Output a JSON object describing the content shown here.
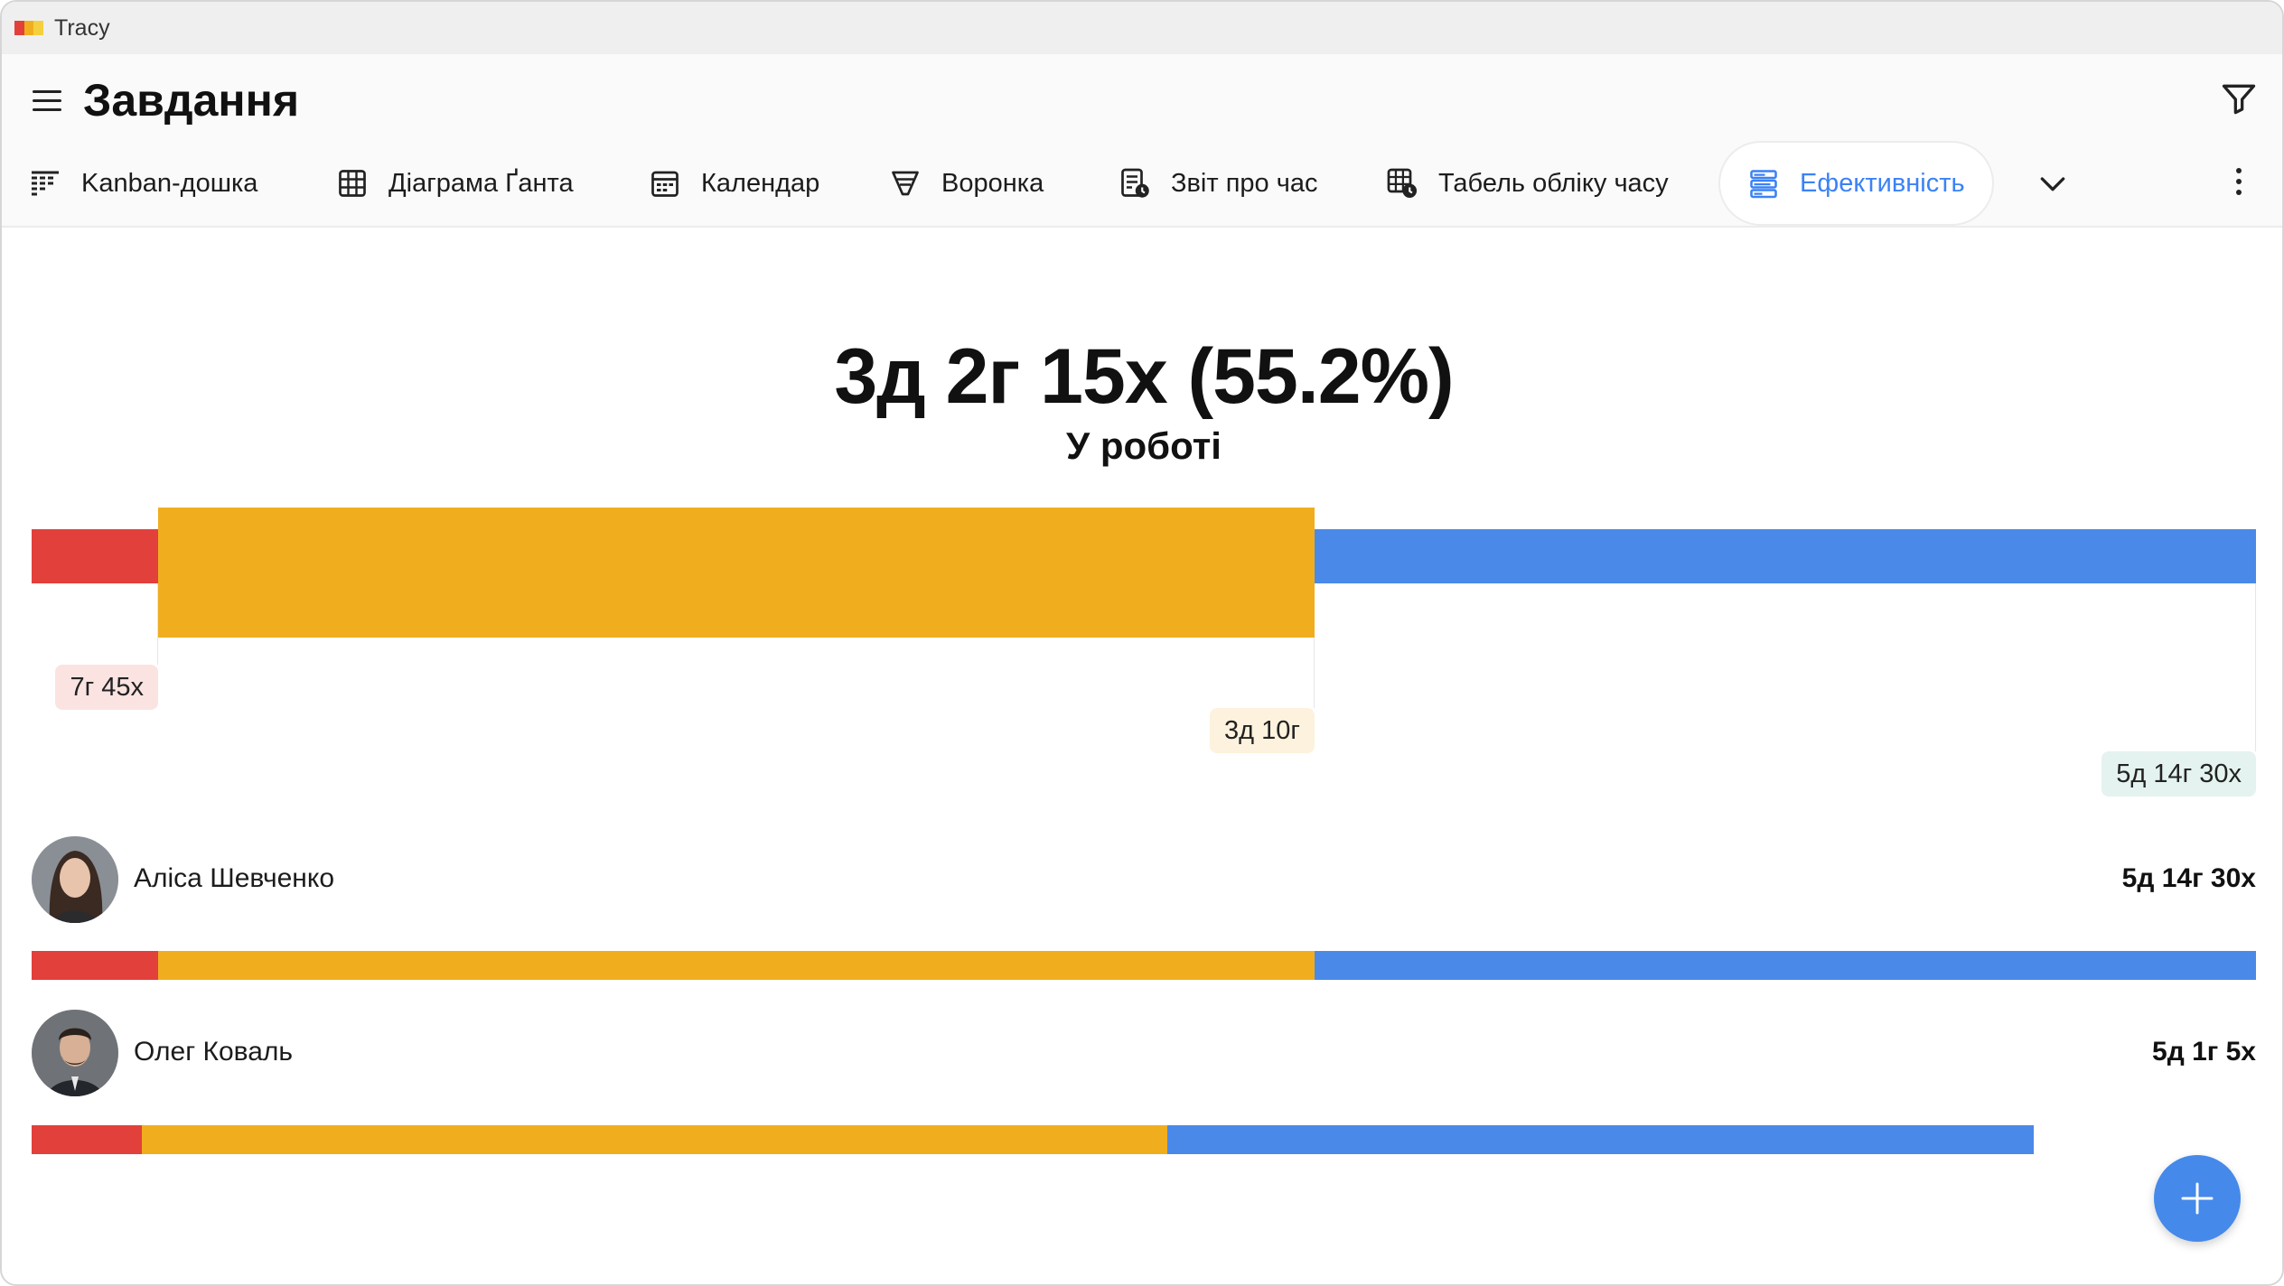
{
  "app": {
    "title": "Tracy"
  },
  "header": {
    "title": "Завдання"
  },
  "tabs": [
    {
      "label": "Kanban-дошка",
      "icon": "kanban-icon"
    },
    {
      "label": "Діаграма Ґанта",
      "icon": "gantt-icon"
    },
    {
      "label": "Календар",
      "icon": "calendar-icon"
    },
    {
      "label": "Воронка",
      "icon": "funnel-icon"
    },
    {
      "label": "Звіт про час",
      "icon": "time-report-icon"
    },
    {
      "label": "Табель обліку часу",
      "icon": "timesheet-icon"
    },
    {
      "label": "Ефективність",
      "icon": "efficiency-icon",
      "active": true
    }
  ],
  "summary": {
    "value": "3д 2г 15х (55.2%)",
    "label": "У роботі"
  },
  "breakdown": {
    "segments": [
      {
        "label": "7г 45х",
        "share": 0.057,
        "color": "#e2403b",
        "pill_bg": "#fbe3e2"
      },
      {
        "label": "3д 10г",
        "share": 0.52,
        "color": "#f0ae1f",
        "pill_bg": "#fdf2dd"
      },
      {
        "label": "5д 14г 30х",
        "share": 0.423,
        "color": "#4a89e8",
        "pill_bg": "#e4f3ef"
      }
    ]
  },
  "people": [
    {
      "name": "Аліса Шевченко",
      "total": "5д 14г 30х",
      "bar_fill": 1.0,
      "shares": [
        0.057,
        0.52,
        0.423
      ]
    },
    {
      "name": "Олег Коваль",
      "total": "5д 1г 5х",
      "bar_fill": 0.9,
      "shares": [
        0.055,
        0.512,
        0.433
      ]
    }
  ],
  "colors": {
    "accent": "#3b82f6",
    "fab": "#4589ea"
  }
}
